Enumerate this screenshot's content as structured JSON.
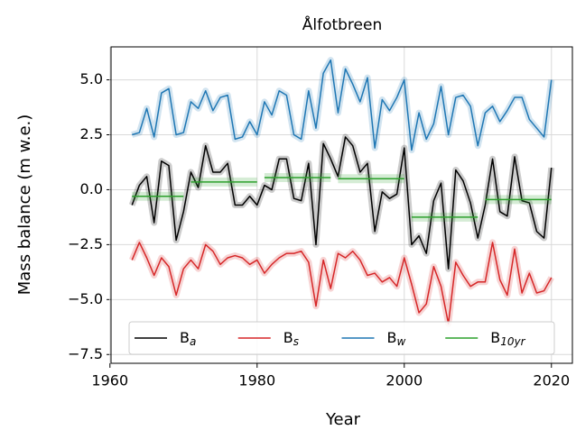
{
  "chart_data": {
    "type": "line",
    "title": "Ålfotbreen",
    "x_label": "Year",
    "y_label": "Mass balance (m w.e.)",
    "x": [
      1963,
      1964,
      1965,
      1966,
      1967,
      1968,
      1969,
      1970,
      1971,
      1972,
      1973,
      1974,
      1975,
      1976,
      1977,
      1978,
      1979,
      1980,
      1981,
      1982,
      1983,
      1984,
      1985,
      1986,
      1987,
      1988,
      1989,
      1990,
      1991,
      1992,
      1993,
      1994,
      1995,
      1996,
      1997,
      1998,
      1999,
      2000,
      2001,
      2002,
      2003,
      2004,
      2005,
      2006,
      2007,
      2008,
      2009,
      2010,
      2011,
      2012,
      2013,
      2014,
      2015,
      2016,
      2017,
      2018,
      2019,
      2020
    ],
    "series": [
      {
        "name": "B_a",
        "color": "#000000",
        "values": [
          -0.7,
          0.2,
          0.6,
          -1.5,
          1.3,
          1.1,
          -2.3,
          -1.0,
          0.8,
          0.1,
          2.0,
          0.8,
          0.8,
          1.2,
          -0.7,
          -0.7,
          -0.3,
          -0.7,
          0.2,
          0.0,
          1.4,
          1.4,
          -0.4,
          -0.5,
          1.2,
          -2.5,
          2.1,
          1.4,
          0.6,
          2.4,
          2.0,
          0.8,
          1.2,
          -1.9,
          -0.1,
          -0.4,
          -0.2,
          1.9,
          -2.5,
          -2.1,
          -2.9,
          -0.5,
          0.3,
          -3.6,
          0.9,
          0.4,
          -0.6,
          -2.2,
          -0.7,
          1.4,
          -1.0,
          -1.2,
          1.5,
          -0.5,
          -0.6,
          -1.9,
          -2.2,
          1.0
        ]
      },
      {
        "name": "B_s",
        "color": "#d62728",
        "values": [
          -3.2,
          -2.4,
          -3.1,
          -3.9,
          -3.1,
          -3.5,
          -4.8,
          -3.6,
          -3.2,
          -3.6,
          -2.5,
          -2.8,
          -3.4,
          -3.1,
          -3.0,
          -3.1,
          -3.4,
          -3.2,
          -3.8,
          -3.4,
          -3.1,
          -2.9,
          -2.9,
          -2.8,
          -3.3,
          -5.3,
          -3.2,
          -4.5,
          -2.9,
          -3.1,
          -2.8,
          -3.2,
          -3.9,
          -3.8,
          -4.2,
          -4.0,
          -4.4,
          -3.1,
          -4.3,
          -5.6,
          -5.2,
          -3.5,
          -4.4,
          -6.1,
          -3.3,
          -3.9,
          -4.4,
          -4.2,
          -4.2,
          -2.4,
          -4.1,
          -4.8,
          -2.7,
          -4.7,
          -3.8,
          -4.7,
          -4.6,
          -4.0
        ]
      },
      {
        "name": "B_w",
        "color": "#1f77b4",
        "values": [
          2.5,
          2.6,
          3.7,
          2.4,
          4.4,
          4.6,
          2.5,
          2.6,
          4.0,
          3.7,
          4.5,
          3.6,
          4.2,
          4.3,
          2.3,
          2.4,
          3.1,
          2.5,
          4.0,
          3.4,
          4.5,
          4.3,
          2.5,
          2.3,
          4.5,
          2.8,
          5.3,
          5.9,
          3.5,
          5.5,
          4.8,
          4.0,
          5.1,
          1.9,
          4.1,
          3.6,
          4.2,
          5.0,
          1.8,
          3.5,
          2.3,
          3.0,
          4.7,
          2.5,
          4.2,
          4.3,
          3.8,
          2.0,
          3.5,
          3.8,
          3.1,
          3.6,
          4.2,
          4.2,
          3.2,
          2.8,
          2.4,
          5.0
        ]
      },
      {
        "name": "B_{10yr}",
        "color": "#2ca02c",
        "values": [
          -0.3,
          -0.3,
          -0.3,
          -0.3,
          -0.3,
          -0.3,
          -0.3,
          -0.3,
          0.35,
          0.35,
          0.35,
          0.35,
          0.35,
          0.35,
          0.35,
          0.35,
          0.35,
          0.35,
          0.55,
          0.55,
          0.55,
          0.55,
          0.55,
          0.55,
          0.55,
          0.55,
          0.55,
          0.55,
          0.5,
          0.5,
          0.5,
          0.5,
          0.5,
          0.5,
          0.5,
          0.5,
          0.5,
          0.5,
          -1.25,
          -1.25,
          -1.25,
          -1.25,
          -1.25,
          -1.25,
          -1.25,
          -1.25,
          -1.25,
          -1.25,
          -0.45,
          -0.45,
          -0.45,
          -0.45,
          -0.45,
          -0.45,
          -0.45,
          -0.45,
          -0.45,
          -0.45
        ]
      }
    ],
    "xlim": [
      1960.15,
      2022.85
    ],
    "xticks": [
      1960,
      1980,
      2000,
      2020
    ],
    "ylim": [
      -7.9,
      6.5
    ],
    "yticks": [
      {
        "value": -7.5,
        "label": "−7.5"
      },
      {
        "value": -5,
        "label": "−5.0"
      },
      {
        "value": -2.5,
        "label": "−2.5"
      },
      {
        "value": 0,
        "label": "0.0"
      },
      {
        "value": 2.5,
        "label": "2.5"
      },
      {
        "value": 5,
        "label": "5.0"
      }
    ],
    "grid": true,
    "legend": "lower center"
  }
}
